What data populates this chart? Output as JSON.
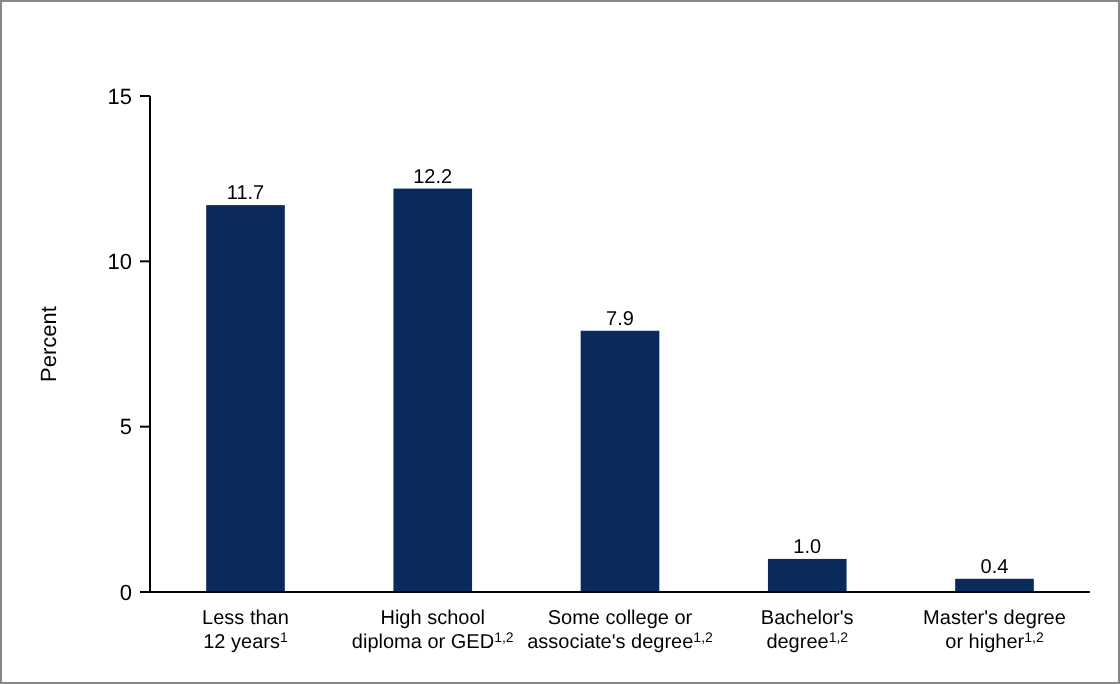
{
  "chart_data": {
    "type": "bar",
    "ylabel": "Percent",
    "categories": [
      "Less than 12 years$^{1}$",
      "High school diploma or GED$^{1,2}$",
      "Some college or associate's degree$^{1,2}$",
      "Bachelor's degree$^{1,2}$",
      "Master's degree or higher$^{1,2}$"
    ],
    "values": [
      11.7,
      12.2,
      7.9,
      1.0,
      0.4
    ],
    "value_labels": [
      "11.7",
      "12.2",
      "7.9",
      "1.0",
      "0.4"
    ],
    "color": "#0b2a5c",
    "ylim": [
      0,
      15
    ],
    "yticks": [
      0,
      5,
      10,
      15
    ],
    "grid": false
  }
}
